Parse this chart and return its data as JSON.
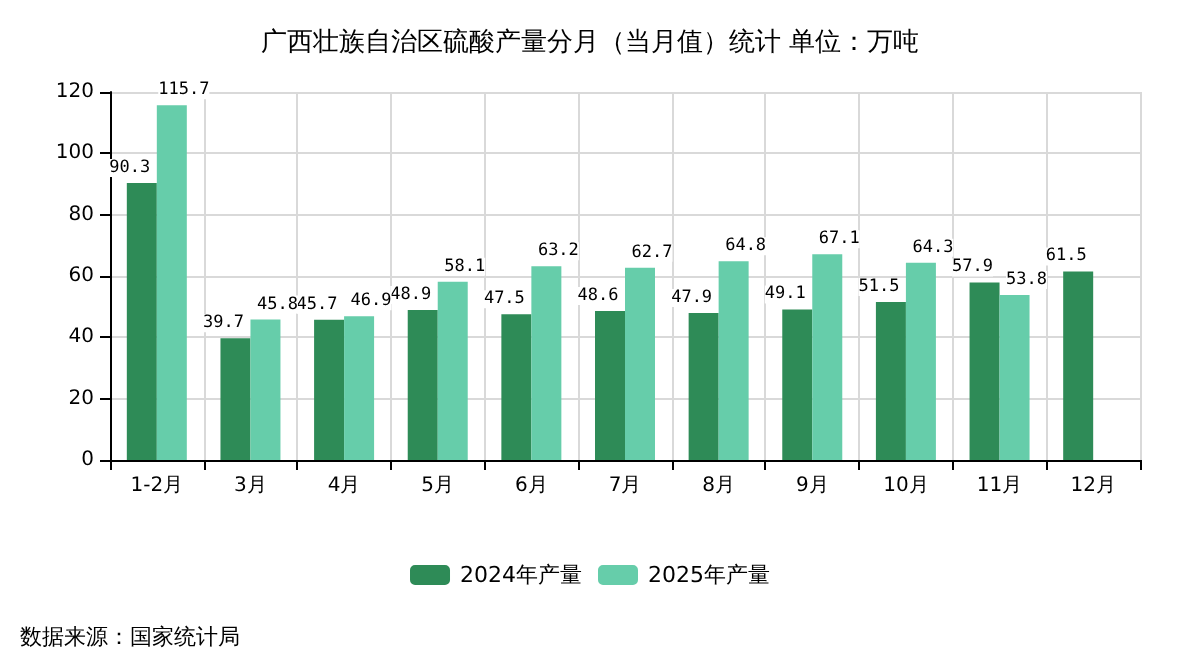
{
  "chart_data": {
    "type": "bar",
    "title": "广西壮族自治区硫酸产量分月（当月值）统计 单位：万吨",
    "categories": [
      "1-2月",
      "3月",
      "4月",
      "5月",
      "6月",
      "7月",
      "8月",
      "9月",
      "10月",
      "11月",
      "12月"
    ],
    "series": [
      {
        "name": "2024年产量",
        "color": "#2e8b57",
        "values": [
          90.3,
          39.7,
          45.7,
          48.9,
          47.5,
          48.6,
          47.9,
          49.1,
          51.5,
          57.9,
          61.5
        ]
      },
      {
        "name": "2025年产量",
        "color": "#66cdaa",
        "values": [
          115.7,
          45.8,
          46.9,
          58.1,
          63.2,
          62.7,
          64.8,
          67.1,
          64.3,
          53.8,
          null
        ]
      }
    ],
    "ylim": [
      0,
      120
    ],
    "yticks": [
      0,
      20,
      40,
      60,
      80,
      100,
      120
    ],
    "grid": true,
    "legend": "bottom",
    "data_labels": true,
    "annotations": [
      "数据来源：国家统计局"
    ]
  }
}
